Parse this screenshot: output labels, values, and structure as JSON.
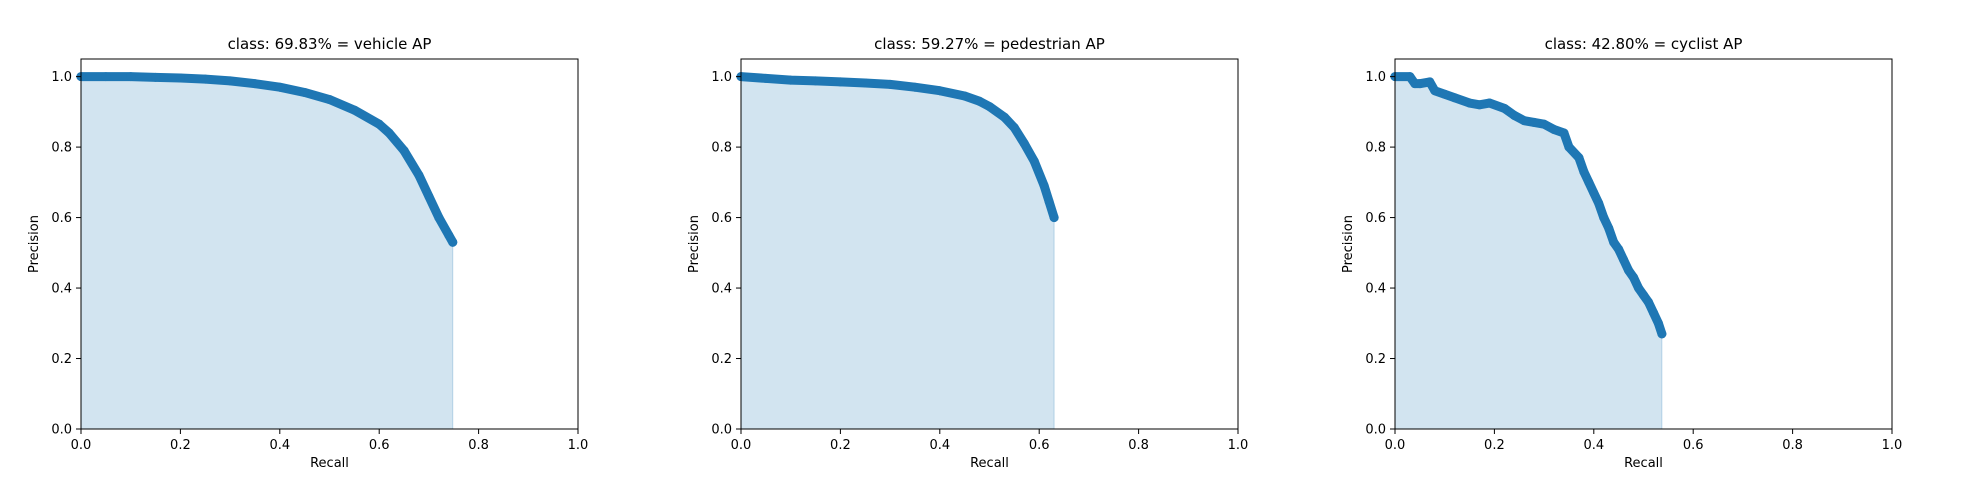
{
  "style": {
    "line_color": "#1f77b4",
    "fill_color": "#1f77b4",
    "fill_opacity": 0.2,
    "frame_color": "#000000",
    "background": "#ffffff"
  },
  "chart_data": [
    {
      "type": "area",
      "title": "class: 69.83% = vehicle AP",
      "xlabel": "Recall",
      "ylabel": "Precision",
      "xlim": [
        0,
        1
      ],
      "ylim": [
        0,
        1.05
      ],
      "xticks": [
        "0.0",
        "0.2",
        "0.4",
        "0.6",
        "0.8",
        "1.0"
      ],
      "yticks": [
        "0.0",
        "0.2",
        "0.4",
        "0.6",
        "0.8",
        "1.0"
      ],
      "grid": false,
      "series": [
        {
          "x": [
            0.0,
            0.05,
            0.1,
            0.15,
            0.2,
            0.25,
            0.3,
            0.35,
            0.4,
            0.45,
            0.5,
            0.55,
            0.6,
            0.62,
            0.65,
            0.68,
            0.7,
            0.72,
            0.74,
            0.748
          ],
          "y": [
            1.0,
            1.0,
            1.0,
            0.998,
            0.996,
            0.993,
            0.988,
            0.98,
            0.97,
            0.955,
            0.935,
            0.905,
            0.865,
            0.84,
            0.79,
            0.72,
            0.66,
            0.6,
            0.55,
            0.53
          ]
        }
      ]
    },
    {
      "type": "area",
      "title": "class: 59.27% = pedestrian AP",
      "xlabel": "Recall",
      "ylabel": "Precision",
      "xlim": [
        0,
        1
      ],
      "ylim": [
        0,
        1.05
      ],
      "xticks": [
        "0.0",
        "0.2",
        "0.4",
        "0.6",
        "0.8",
        "1.0"
      ],
      "yticks": [
        "0.0",
        "0.2",
        "0.4",
        "0.6",
        "0.8",
        "1.0"
      ],
      "grid": false,
      "series": [
        {
          "x": [
            0.0,
            0.05,
            0.1,
            0.15,
            0.2,
            0.25,
            0.3,
            0.35,
            0.4,
            0.45,
            0.48,
            0.5,
            0.53,
            0.55,
            0.57,
            0.59,
            0.61,
            0.62,
            0.63
          ],
          "y": [
            1.0,
            0.995,
            0.99,
            0.988,
            0.985,
            0.982,
            0.978,
            0.97,
            0.96,
            0.945,
            0.93,
            0.915,
            0.885,
            0.855,
            0.81,
            0.76,
            0.69,
            0.645,
            0.6
          ]
        }
      ]
    },
    {
      "type": "area",
      "title": "class: 42.80% = cyclist AP",
      "xlabel": "Recall",
      "ylabel": "Precision",
      "xlim": [
        0,
        1
      ],
      "ylim": [
        0,
        1.05
      ],
      "xticks": [
        "0.0",
        "0.2",
        "0.4",
        "0.6",
        "0.8",
        "1.0"
      ],
      "yticks": [
        "0.0",
        "0.2",
        "0.4",
        "0.6",
        "0.8",
        "1.0"
      ],
      "grid": false,
      "series": [
        {
          "x": [
            0.0,
            0.03,
            0.04,
            0.05,
            0.07,
            0.08,
            0.1,
            0.12,
            0.15,
            0.17,
            0.19,
            0.22,
            0.24,
            0.26,
            0.28,
            0.3,
            0.32,
            0.34,
            0.35,
            0.37,
            0.38,
            0.39,
            0.4,
            0.41,
            0.42,
            0.43,
            0.44,
            0.45,
            0.46,
            0.47,
            0.48,
            0.49,
            0.5,
            0.51,
            0.52,
            0.53,
            0.537
          ],
          "y": [
            1.0,
            1.0,
            0.98,
            0.98,
            0.985,
            0.96,
            0.95,
            0.94,
            0.925,
            0.92,
            0.925,
            0.91,
            0.89,
            0.875,
            0.87,
            0.865,
            0.85,
            0.84,
            0.8,
            0.77,
            0.73,
            0.7,
            0.67,
            0.64,
            0.6,
            0.57,
            0.53,
            0.51,
            0.48,
            0.45,
            0.43,
            0.4,
            0.38,
            0.36,
            0.33,
            0.3,
            0.27
          ]
        }
      ]
    }
  ]
}
